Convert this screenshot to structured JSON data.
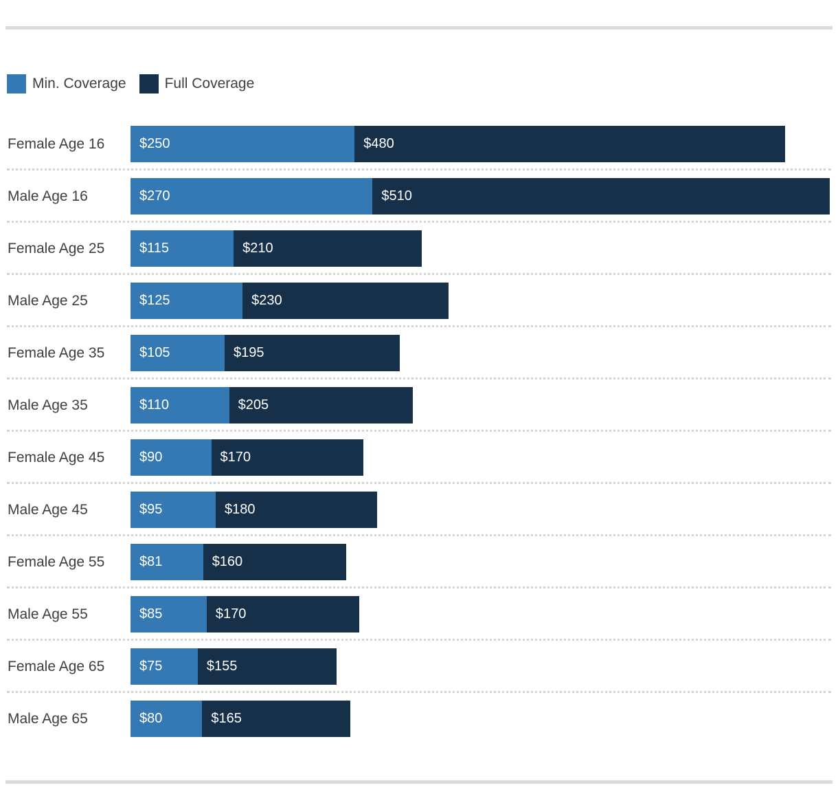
{
  "page": {
    "background": "#ffffff",
    "divider_color": "#dcdcdc",
    "separator_color": "#d4d4d4"
  },
  "legend": {
    "items": [
      {
        "label": "Min. Coverage",
        "color": "#3579b4"
      },
      {
        "label": "Full Coverage",
        "color": "#16304a"
      }
    ]
  },
  "chart_data": {
    "type": "bar",
    "orientation": "horizontal",
    "stacked": true,
    "title": "",
    "legend_position": "top",
    "grid": false,
    "value_prefix": "$",
    "x_max_total": 780,
    "categories": [
      "Female Age 16",
      "Male Age 16",
      "Female Age 25",
      "Male Age 25",
      "Female Age 35",
      "Male Age 35",
      "Female Age 45",
      "Male Age 45",
      "Female Age 55",
      "Male Age 55",
      "Female Age 65",
      "Male Age 65"
    ],
    "series": [
      {
        "name": "Min. Coverage",
        "color": "#3579b4",
        "values": [
          250,
          270,
          115,
          125,
          105,
          110,
          90,
          95,
          81,
          85,
          75,
          80
        ],
        "labels": [
          "$250",
          "$270",
          "$115",
          "$125",
          "$105",
          "$110",
          "$90",
          "$95",
          "$81",
          "$85",
          "$75",
          "$80"
        ]
      },
      {
        "name": "Full Coverage",
        "color": "#16304a",
        "values": [
          480,
          510,
          210,
          230,
          195,
          205,
          170,
          180,
          160,
          170,
          155,
          165
        ],
        "labels": [
          "$480",
          "$510",
          "$210",
          "$230",
          "$195",
          "$205",
          "$170",
          "$180",
          "$160",
          "$170",
          "$155",
          "$165"
        ]
      }
    ]
  }
}
